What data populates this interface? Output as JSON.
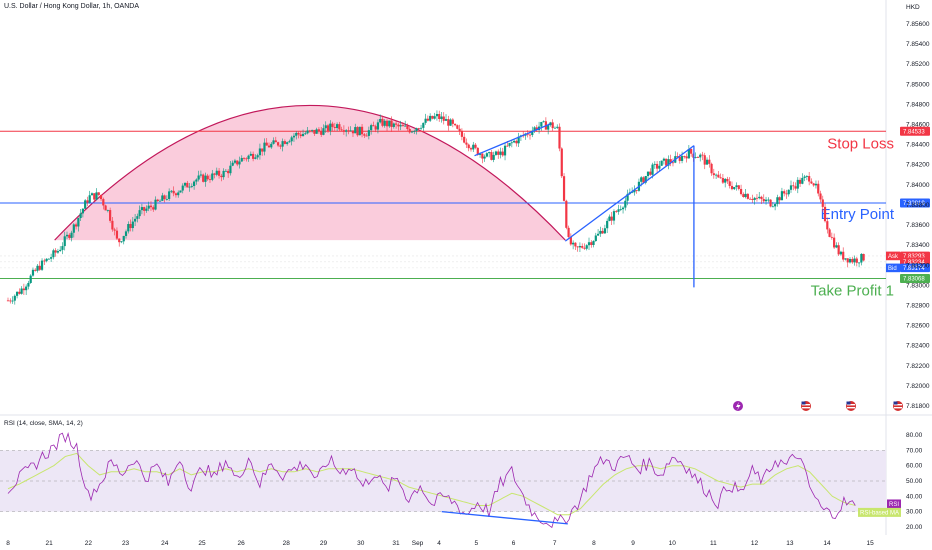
{
  "header": {
    "title": "U.S. Dollar / Hong Kong Dollar, 1h, OANDA",
    "currency": "HKD"
  },
  "rsi_panel": {
    "title": "RSI (14, close, SMA, 14, 2)",
    "rsi_tag": "RSI",
    "ma_tag": "RSI-based MA"
  },
  "colors": {
    "up": "#089981",
    "down": "#f23645",
    "stop_loss": "#f23645",
    "entry": "#2962ff",
    "take_profit": "#4caf50",
    "arc": "#c2185b",
    "arc_fill": "#f8bbd0",
    "rsi_line": "#9c27b0",
    "rsi_ma": "#c8e66e",
    "rsi_band": "#ede7f6"
  },
  "chart_data": [
    {
      "type": "candlestick",
      "title": "U.S. Dollar / Hong Kong Dollar, 1h, OANDA",
      "y_ticks": [
        "7.85600",
        "7.85400",
        "7.85200",
        "7.85000",
        "7.84800",
        "7.84600",
        "7.84400",
        "7.84200",
        "7.84000",
        "7.83800",
        "7.83600",
        "7.83400",
        "7.83200",
        "7.83000",
        "7.82800",
        "7.82600",
        "7.82400",
        "7.82200",
        "7.82000",
        "7.81800"
      ],
      "x_ticks": [
        "8",
        "21",
        "22",
        "23",
        "24",
        "25",
        "26",
        "28",
        "29",
        "30",
        "31",
        "Sep",
        "4",
        "5",
        "6",
        "7",
        "8",
        "9",
        "10",
        "11",
        "12",
        "13",
        "14",
        "15"
      ],
      "ylim": [
        7.8172,
        7.857
      ],
      "levels": [
        {
          "name": "Stop Loss",
          "value": 7.84533,
          "label": "7.84533"
        },
        {
          "name": "Entry Point",
          "value": 7.83819,
          "label": "7.83819"
        },
        {
          "name": "Take Profit 1",
          "value": 7.83068,
          "label": "7.83068"
        }
      ],
      "price_tags": [
        {
          "name": "Ask",
          "value": 7.83293,
          "label": "7.83293"
        },
        {
          "name": "",
          "value": 7.83234,
          "label": "7.83234"
        },
        {
          "name": "Bid",
          "value": 7.83174,
          "label": "7.83174"
        }
      ],
      "close_path": [
        [
          0,
          7.8285
        ],
        [
          0.5,
          7.8295
        ],
        [
          1.2,
          7.8318
        ],
        [
          2,
          7.8335
        ],
        [
          2.6,
          7.8358
        ],
        [
          3.2,
          7.8388
        ],
        [
          3.6,
          7.839
        ],
        [
          4,
          7.8372
        ],
        [
          4.35,
          7.8342
        ],
        [
          4.7,
          7.8355
        ],
        [
          5.2,
          7.8372
        ],
        [
          5.8,
          7.838
        ],
        [
          6.4,
          7.839
        ],
        [
          7,
          7.8398
        ],
        [
          7.4,
          7.8405
        ],
        [
          8,
          7.8408
        ],
        [
          8.6,
          7.8412
        ],
        [
          9.2,
          7.8425
        ],
        [
          9.7,
          7.843
        ],
        [
          10.2,
          7.8438
        ],
        [
          10.8,
          7.8442
        ],
        [
          11.4,
          7.845
        ],
        [
          12,
          7.8452
        ],
        [
          12.6,
          7.8455
        ],
        [
          13,
          7.846
        ],
        [
          13.6,
          7.8455
        ],
        [
          14.2,
          7.8452
        ],
        [
          14.8,
          7.8462
        ],
        [
          15.4,
          7.8458
        ],
        [
          16,
          7.8455
        ],
        [
          16.5,
          7.8462
        ],
        [
          17,
          7.8468
        ],
        [
          17.5,
          7.8462
        ],
        [
          18,
          7.8448
        ],
        [
          18.5,
          7.8435
        ],
        [
          19,
          7.8428
        ],
        [
          19.5,
          7.843
        ],
        [
          20,
          7.8442
        ],
        [
          20.5,
          7.845
        ],
        [
          21,
          7.8458
        ],
        [
          21.5,
          7.846
        ],
        [
          21.8,
          7.8455
        ],
        [
          22,
          7.84
        ],
        [
          22.2,
          7.8345
        ],
        [
          22.5,
          7.8335
        ],
        [
          23,
          7.8342
        ],
        [
          23.4,
          7.835
        ],
        [
          24,
          7.837
        ],
        [
          24.5,
          7.8385
        ],
        [
          25,
          7.84
        ],
        [
          25.5,
          7.8415
        ],
        [
          26,
          7.8422
        ],
        [
          26.5,
          7.8425
        ],
        [
          27,
          7.8432
        ],
        [
          27.5,
          7.8428
        ],
        [
          27.8,
          7.8418
        ],
        [
          28.2,
          7.8405
        ],
        [
          28.8,
          7.8398
        ],
        [
          29.3,
          7.839
        ],
        [
          29.8,
          7.8385
        ],
        [
          30.3,
          7.8382
        ],
        [
          30.8,
          7.8392
        ],
        [
          31.3,
          7.8402
        ],
        [
          31.8,
          7.8408
        ],
        [
          32,
          7.84
        ],
        [
          32.3,
          7.8375
        ],
        [
          32.6,
          7.835
        ],
        [
          33,
          7.833
        ],
        [
          33.5,
          7.8325
        ],
        [
          34,
          7.8328
        ]
      ]
    },
    {
      "type": "line",
      "title": "RSI (14, close, SMA, 14, 2)",
      "y_ticks": [
        "80.00",
        "70.00",
        "60.00",
        "50.00",
        "40.00",
        "30.00",
        "20.00"
      ],
      "ylim": [
        18,
        82
      ],
      "bands": [
        30,
        50,
        70
      ],
      "series": [
        {
          "name": "RSI",
          "values": [
            45,
            52,
            58,
            66,
            72,
            80,
            72,
            40,
            48,
            62,
            55,
            65,
            52,
            60,
            48,
            66,
            44,
            60,
            52,
            64,
            50,
            66,
            48,
            62,
            54,
            58,
            62,
            50,
            64,
            56,
            60,
            46,
            56,
            44,
            52,
            38,
            48,
            34,
            40,
            36,
            28,
            36,
            30,
            48,
            56,
            40,
            28,
            24,
            22,
            28,
            38,
            56,
            64,
            60,
            66,
            58,
            62,
            54,
            66,
            62,
            52,
            44,
            36,
            48,
            42,
            56,
            50,
            64,
            60,
            68,
            46,
            32,
            28,
            36,
            34
          ]
        },
        {
          "name": "RSI-based MA",
          "values": [
            45,
            48,
            52,
            56,
            60,
            66,
            68,
            60,
            54,
            56,
            56,
            58,
            56,
            56,
            54,
            58,
            54,
            56,
            56,
            58,
            56,
            58,
            56,
            58,
            56,
            56,
            58,
            56,
            58,
            58,
            58,
            56,
            54,
            52,
            50,
            46,
            44,
            42,
            40,
            38,
            36,
            34,
            34,
            38,
            42,
            40,
            36,
            32,
            28,
            28,
            32,
            40,
            48,
            54,
            58,
            60,
            60,
            58,
            60,
            60,
            58,
            54,
            50,
            48,
            46,
            48,
            48,
            54,
            58,
            60,
            56,
            48,
            40,
            36,
            34
          ]
        }
      ],
      "values_shown": {
        "RSI": "RSI",
        "RSI-based MA": "RSI-based MA"
      }
    }
  ]
}
